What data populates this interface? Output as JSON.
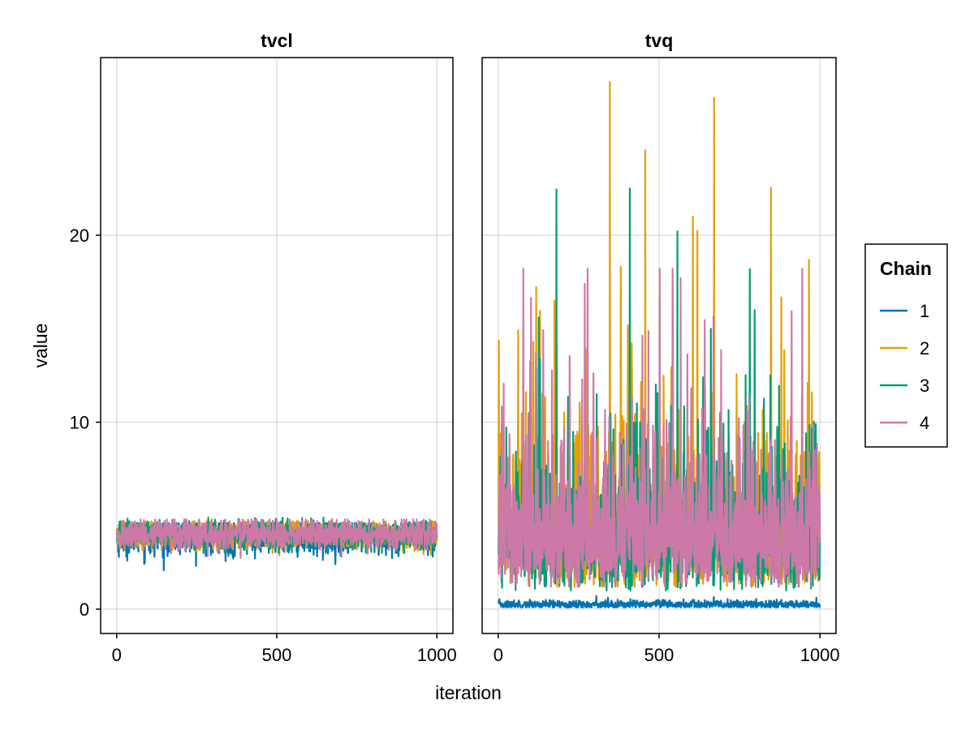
{
  "chart_data": {
    "type": "line",
    "xlabel": "iteration",
    "ylabel": "value",
    "xlim": [
      -50,
      1050
    ],
    "ylim": [
      -1.3,
      29.5
    ],
    "xticks": [
      0,
      500,
      1000
    ],
    "xtick_labels": [
      "0",
      "500",
      "1000"
    ],
    "yticks": [
      0,
      10,
      20
    ],
    "ytick_labels": [
      "0",
      "10",
      "20"
    ],
    "grid": true,
    "legend": {
      "title": "Chain",
      "position": "right",
      "entries": [
        {
          "label": "1",
          "color": "#0072b2"
        },
        {
          "label": "2",
          "color": "#e69f00"
        },
        {
          "label": "3",
          "color": "#009e73"
        },
        {
          "label": "4",
          "color": "#cc79a7"
        }
      ]
    },
    "panels": [
      {
        "title": "tvcl",
        "series": [
          {
            "name": "1",
            "color": "#0072b2",
            "mean": 3.9,
            "low": 2.0,
            "high": 4.6
          },
          {
            "name": "2",
            "color": "#e69f00",
            "mean": 4.0,
            "low": 2.7,
            "high": 4.7
          },
          {
            "name": "3",
            "color": "#009e73",
            "mean": 4.0,
            "low": 3.0,
            "high": 4.9
          },
          {
            "name": "4",
            "color": "#cc79a7",
            "mean": 4.0,
            "low": 2.7,
            "high": 4.8
          }
        ]
      },
      {
        "title": "tvq",
        "series": [
          {
            "name": "1",
            "color": "#0072b2",
            "mean": 0.25,
            "low": 0.1,
            "high": 0.7
          },
          {
            "name": "2",
            "color": "#e69f00",
            "mean": 4.5,
            "low": 1.2,
            "high": 28.2
          },
          {
            "name": "3",
            "color": "#009e73",
            "mean": 4.5,
            "low": 1.0,
            "high": 22.5
          },
          {
            "name": "4",
            "color": "#cc79a7",
            "mean": 4.5,
            "low": 1.2,
            "high": 18.2
          }
        ]
      }
    ],
    "iterations": [
      1,
      1000
    ]
  }
}
